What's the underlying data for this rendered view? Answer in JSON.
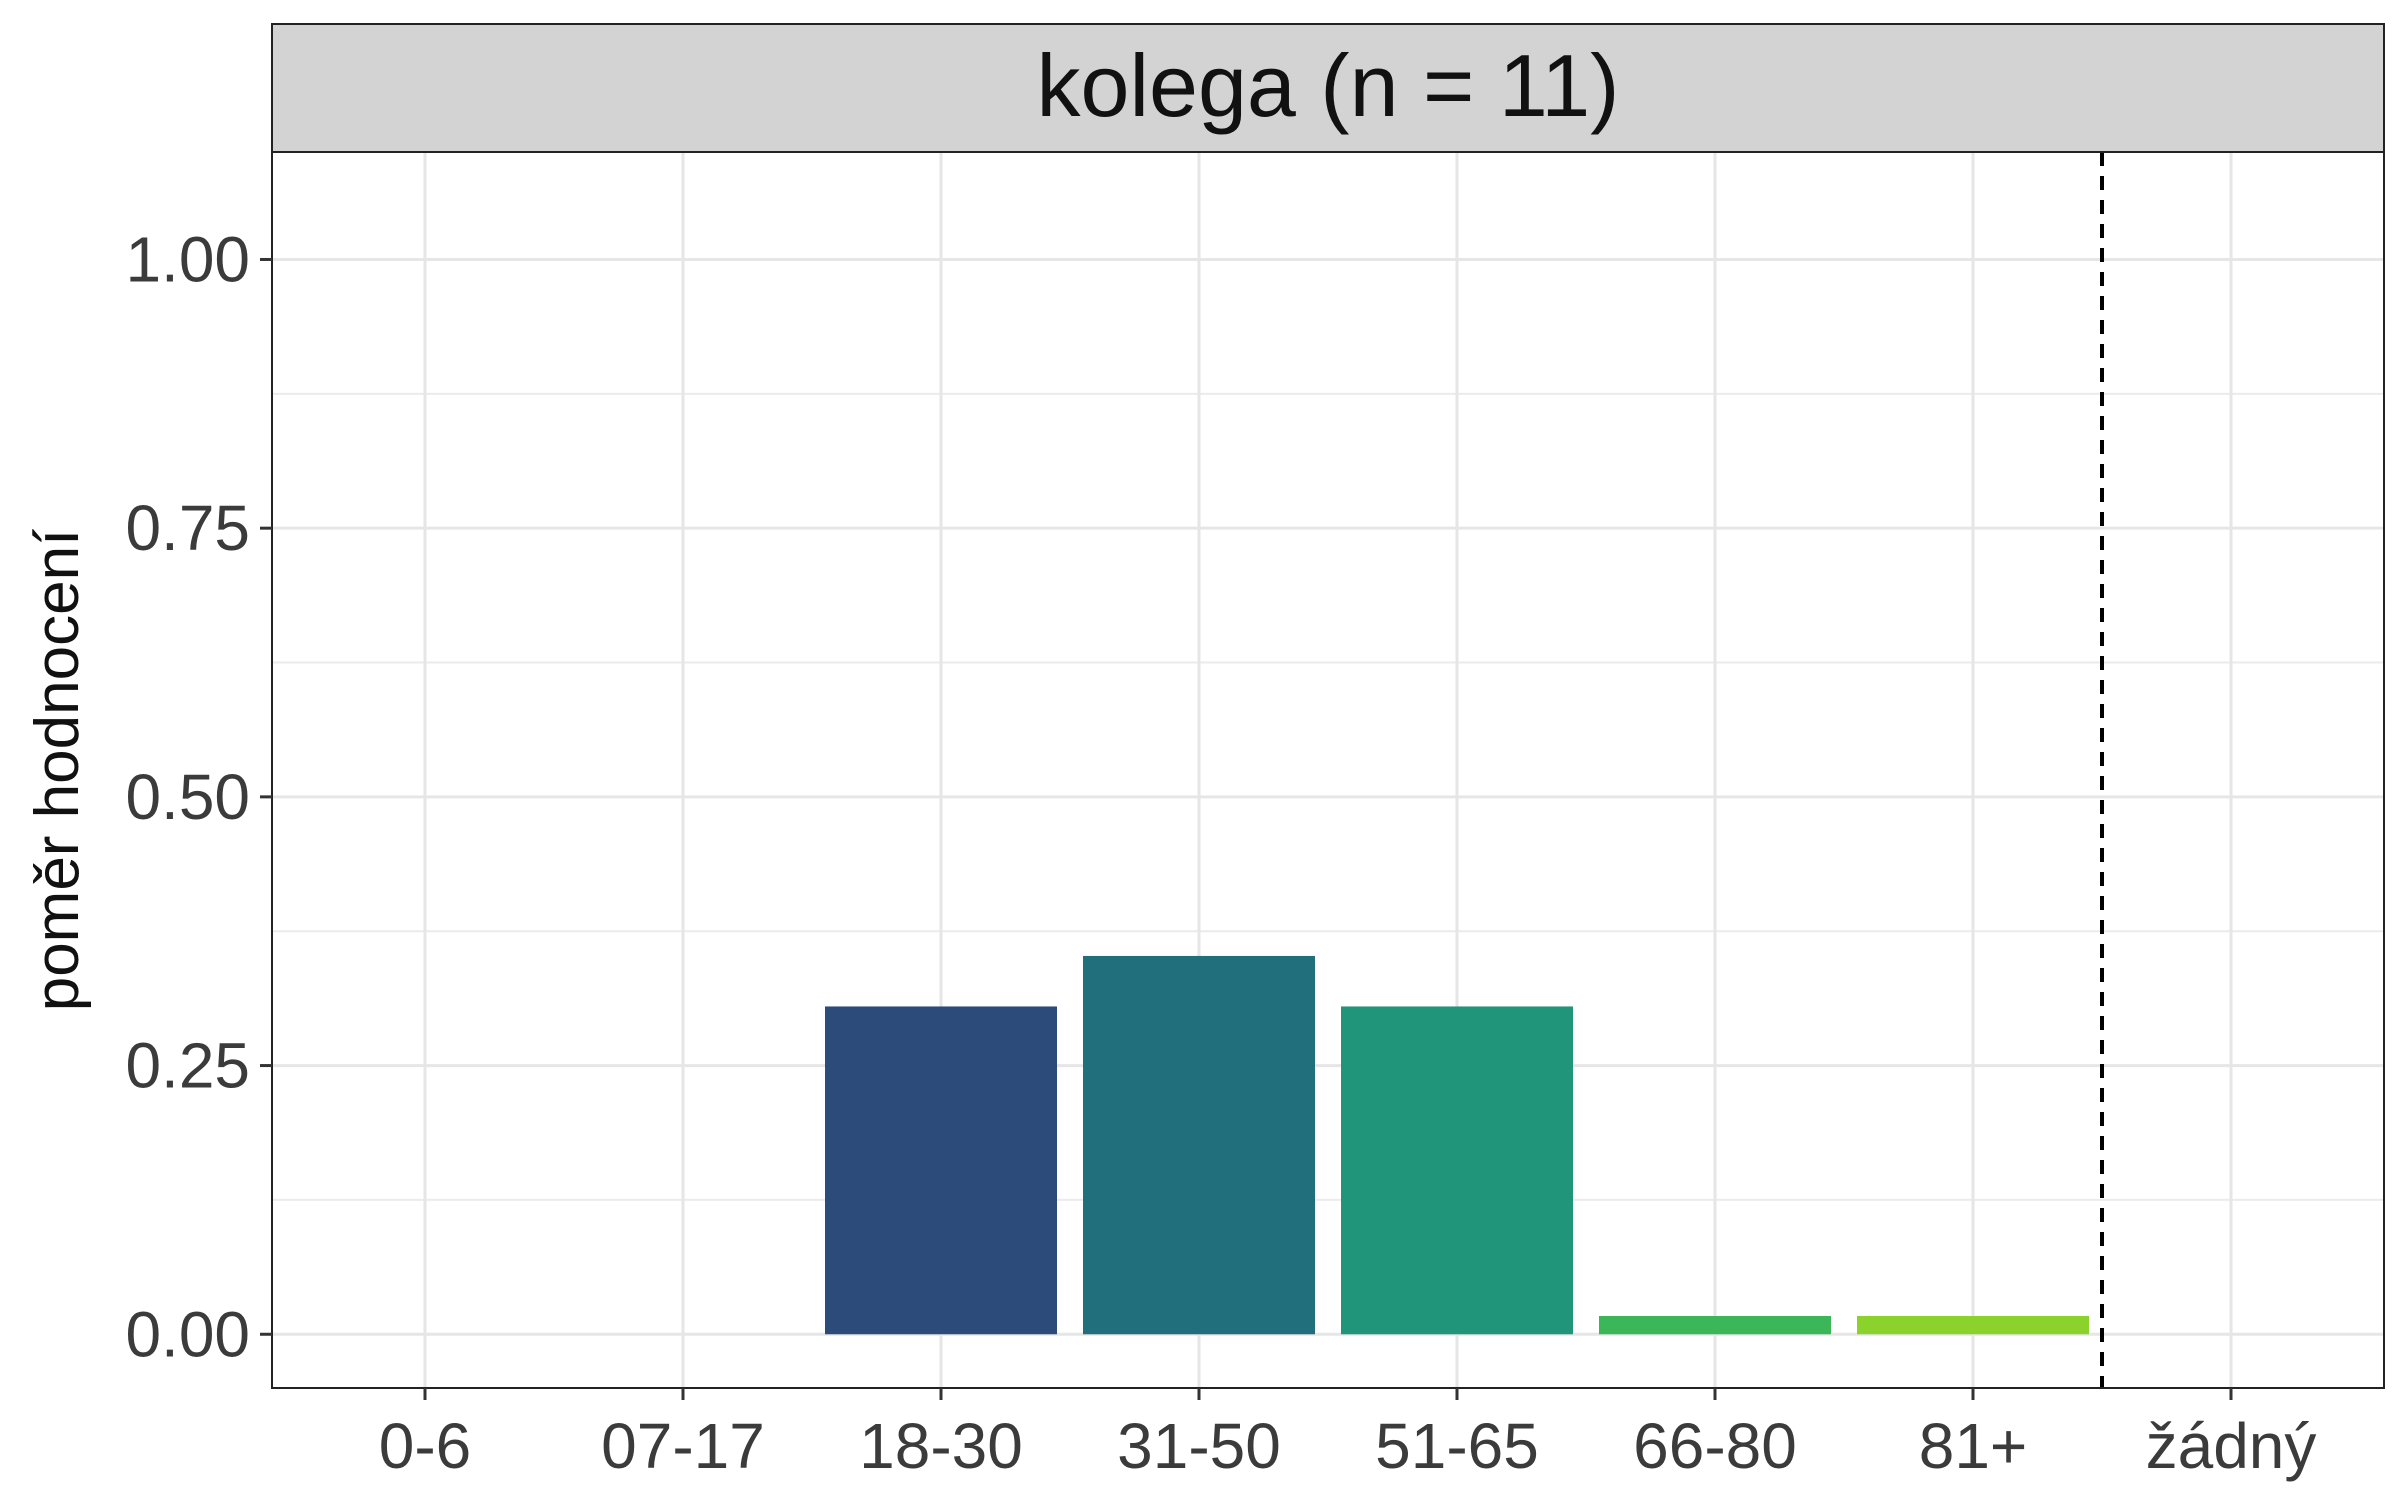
{
  "chart_data": {
    "type": "bar",
    "facet_title": "kolega (n = 11)",
    "ylabel": "poměr hodnocení",
    "xlabel": "",
    "categories": [
      "0-6",
      "07-17",
      "18-30",
      "31-50",
      "51-65",
      "66-80",
      "81+",
      "žádný"
    ],
    "values": [
      0,
      0,
      0.305,
      0.352,
      0.305,
      0.017,
      0.017,
      0
    ],
    "bar_colors": [
      "#440154",
      "#46327e",
      "#2c4a7a",
      "#216f7c",
      "#21957a",
      "#3bb75a",
      "#8bd22c",
      "#fde725"
    ],
    "ylim": [
      -0.05,
      1.1
    ],
    "y_ticks": [
      "0.00",
      "0.25",
      "0.50",
      "0.75",
      "1.00"
    ],
    "y_tick_values": [
      0,
      0.25,
      0.5,
      0.75,
      1.0
    ],
    "reference_line": {
      "style": "dashed",
      "between": [
        "81+",
        "žádný"
      ]
    },
    "grid": true,
    "legend": "none"
  }
}
